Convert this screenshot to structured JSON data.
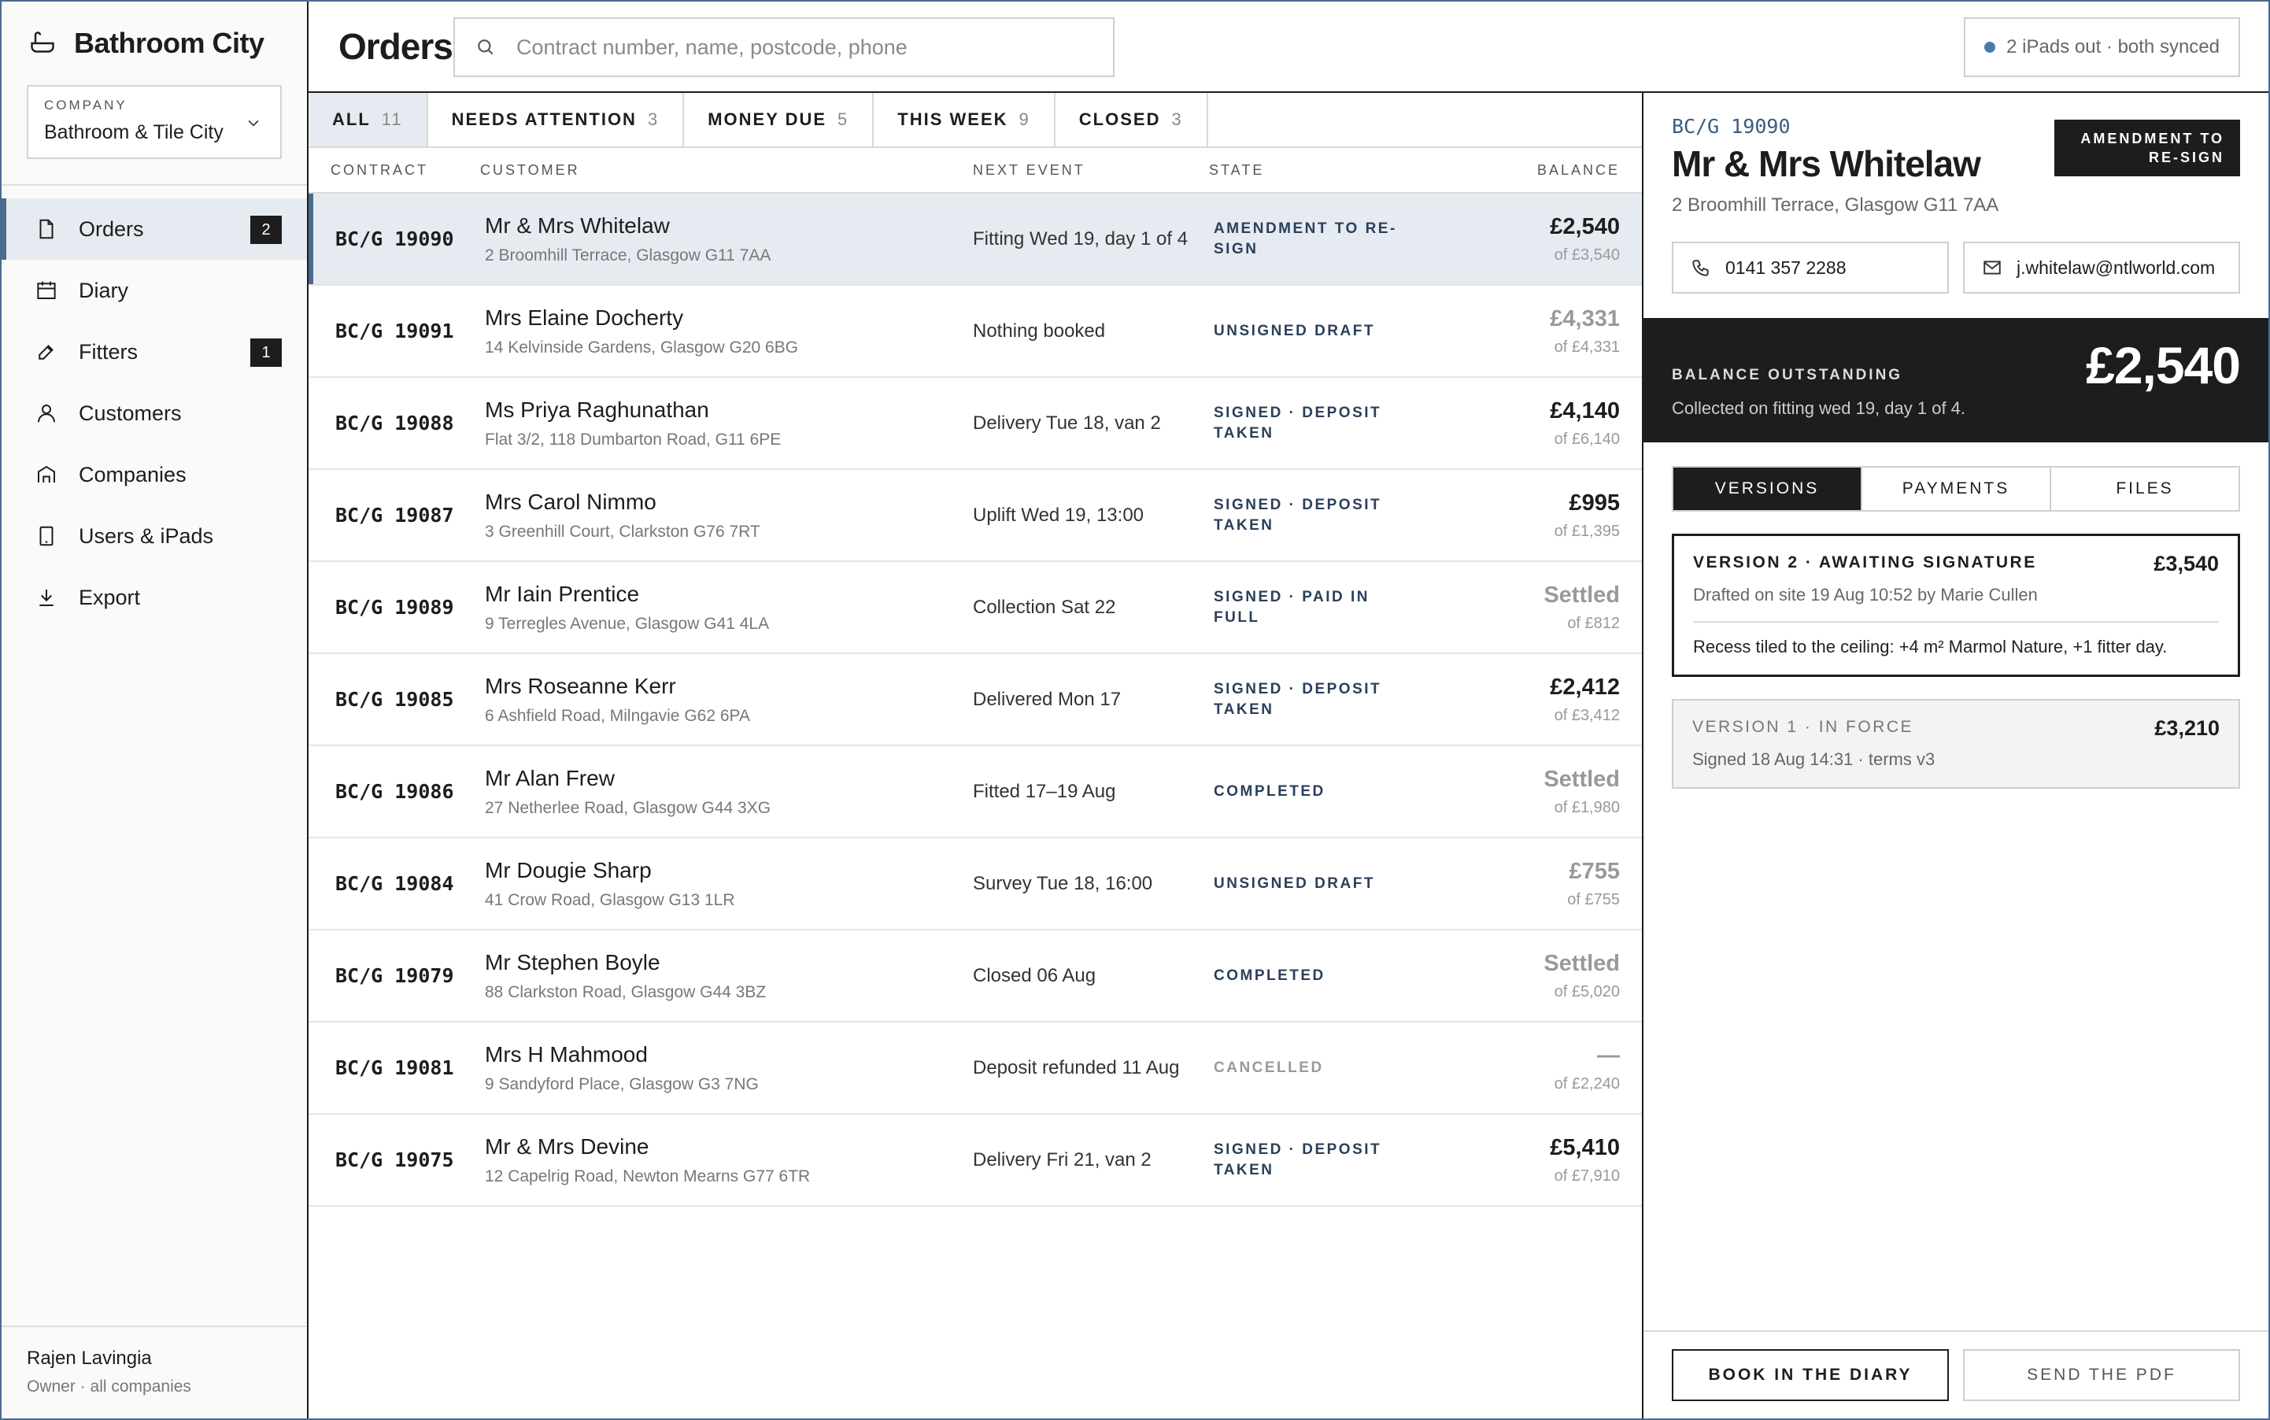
{
  "app": {
    "brand": "Bathroom City"
  },
  "company": {
    "caption": "COMPANY",
    "value": "Bathroom & Tile City"
  },
  "nav": [
    {
      "label": "Orders",
      "icon": "document-icon",
      "badge": "2",
      "active": true
    },
    {
      "label": "Diary",
      "icon": "calendar-icon",
      "badge": "",
      "active": false
    },
    {
      "label": "Fitters",
      "icon": "wrench-icon",
      "badge": "1",
      "active": false
    },
    {
      "label": "Customers",
      "icon": "person-icon",
      "badge": "",
      "active": false
    },
    {
      "label": "Companies",
      "icon": "building-icon",
      "badge": "",
      "active": false
    },
    {
      "label": "Users & iPads",
      "icon": "tablet-icon",
      "badge": "",
      "active": false
    },
    {
      "label": "Export",
      "icon": "download-icon",
      "badge": "",
      "active": false
    }
  ],
  "user": {
    "name": "Rajen Lavingia",
    "role": "Owner · all companies"
  },
  "header": {
    "title": "Orders",
    "search_placeholder": "Contract number, name, postcode, phone",
    "sync_status": "2 iPads out · both synced"
  },
  "tabs": [
    {
      "label": "ALL",
      "count": "11",
      "active": true
    },
    {
      "label": "NEEDS ATTENTION",
      "count": "3",
      "active": false
    },
    {
      "label": "MONEY DUE",
      "count": "5",
      "active": false
    },
    {
      "label": "THIS WEEK",
      "count": "9",
      "active": false
    },
    {
      "label": "CLOSED",
      "count": "3",
      "active": false
    }
  ],
  "columns": {
    "contract": "CONTRACT",
    "customer": "CUSTOMER",
    "next_event": "NEXT EVENT",
    "state": "STATE",
    "balance": "BALANCE"
  },
  "orders": [
    {
      "contract": "BC/G 19090",
      "name": "Mr & Mrs Whitelaw",
      "address": "2 Broomhill Terrace, Glasgow G11 7AA",
      "event": "Fitting Wed 19, day 1 of 4",
      "state": "AMENDMENT TO RE-SIGN",
      "state_muted": false,
      "balance": "£2,540",
      "balance_grey": false,
      "total": "of £3,540",
      "selected": true
    },
    {
      "contract": "BC/G 19091",
      "name": "Mrs Elaine Docherty",
      "address": "14 Kelvinside Gardens, Glasgow G20 6BG",
      "event": "Nothing booked",
      "state": "UNSIGNED DRAFT",
      "state_muted": false,
      "balance": "£4,331",
      "balance_grey": true,
      "total": "of £4,331",
      "selected": false
    },
    {
      "contract": "BC/G 19088",
      "name": "Ms Priya Raghunathan",
      "address": "Flat 3/2, 118 Dumbarton Road, G11 6PE",
      "event": "Delivery Tue 18, van 2",
      "state": "SIGNED · DEPOSIT TAKEN",
      "state_muted": false,
      "balance": "£4,140",
      "balance_grey": false,
      "total": "of £6,140",
      "selected": false
    },
    {
      "contract": "BC/G 19087",
      "name": "Mrs Carol Nimmo",
      "address": "3 Greenhill Court, Clarkston G76 7RT",
      "event": "Uplift Wed 19, 13:00",
      "state": "SIGNED · DEPOSIT TAKEN",
      "state_muted": false,
      "balance": "£995",
      "balance_grey": false,
      "total": "of £1,395",
      "selected": false
    },
    {
      "contract": "BC/G 19089",
      "name": "Mr Iain Prentice",
      "address": "9 Terregles Avenue, Glasgow G41 4LA",
      "event": "Collection Sat 22",
      "state": "SIGNED · PAID IN FULL",
      "state_muted": false,
      "balance": "Settled",
      "balance_grey": true,
      "total": "of £812",
      "selected": false
    },
    {
      "contract": "BC/G 19085",
      "name": "Mrs Roseanne Kerr",
      "address": "6 Ashfield Road, Milngavie G62 6PA",
      "event": "Delivered Mon 17",
      "state": "SIGNED · DEPOSIT TAKEN",
      "state_muted": false,
      "balance": "£2,412",
      "balance_grey": false,
      "total": "of £3,412",
      "selected": false
    },
    {
      "contract": "BC/G 19086",
      "name": "Mr Alan Frew",
      "address": "27 Netherlee Road, Glasgow G44 3XG",
      "event": "Fitted 17–19 Aug",
      "state": "COMPLETED",
      "state_muted": false,
      "balance": "Settled",
      "balance_grey": true,
      "total": "of £1,980",
      "selected": false
    },
    {
      "contract": "BC/G 19084",
      "name": "Mr Dougie Sharp",
      "address": "41 Crow Road, Glasgow G13 1LR",
      "event": "Survey Tue 18, 16:00",
      "state": "UNSIGNED DRAFT",
      "state_muted": false,
      "balance": "£755",
      "balance_grey": true,
      "total": "of £755",
      "selected": false
    },
    {
      "contract": "BC/G 19079",
      "name": "Mr Stephen Boyle",
      "address": "88 Clarkston Road, Glasgow G44 3BZ",
      "event": "Closed 06 Aug",
      "state": "COMPLETED",
      "state_muted": false,
      "balance": "Settled",
      "balance_grey": true,
      "total": "of £5,020",
      "selected": false
    },
    {
      "contract": "BC/G 19081",
      "name": "Mrs H Mahmood",
      "address": "9 Sandyford Place, Glasgow G3 7NG",
      "event": "Deposit refunded 11 Aug",
      "state": "CANCELLED",
      "state_muted": true,
      "balance": "—",
      "balance_grey": true,
      "total": "of £2,240",
      "selected": false
    },
    {
      "contract": "BC/G 19075",
      "name": "Mr & Mrs Devine",
      "address": "12 Capelrig Road, Newton Mearns G77 6TR",
      "event": "Delivery Fri 21, van 2",
      "state": "SIGNED · DEPOSIT TAKEN",
      "state_muted": false,
      "balance": "£5,410",
      "balance_grey": false,
      "total": "of £7,910",
      "selected": false
    }
  ],
  "detail": {
    "contract": "BC/G 19090",
    "name": "Mr & Mrs Whitelaw",
    "address": "2 Broomhill Terrace, Glasgow G11 7AA",
    "badge": "AMENDMENT TO RE-SIGN",
    "phone": "0141 357 2288",
    "email": "j.whitelaw@ntlworld.com",
    "balance_label": "BALANCE OUTSTANDING",
    "balance_note": "Collected on fitting wed 19, day 1 of 4.",
    "balance_amount": "£2,540",
    "tabs": [
      "VERSIONS",
      "PAYMENTS",
      "FILES"
    ],
    "versions": [
      {
        "title": "VERSION 2 · AWAITING SIGNATURE",
        "amount": "£3,540",
        "meta": "Drafted on site 19 Aug 10:52 by Marie Cullen",
        "note": "Recess tiled to the ceiling: +4 m² Marmol Nature, +1 fitter day.",
        "current": true
      },
      {
        "title": "VERSION 1 · IN FORCE",
        "amount": "£3,210",
        "meta": "Signed 18 Aug 14:31 · terms v3",
        "note": "",
        "current": false
      }
    ],
    "actions": {
      "primary": "BOOK IN THE DIARY",
      "secondary": "SEND THE PDF"
    }
  },
  "colors": {
    "accent": "#4a6a8e",
    "selected_bg": "#e6ebf1",
    "dark": "#1d1d1f",
    "sync_dot": "#4a7bb0"
  }
}
